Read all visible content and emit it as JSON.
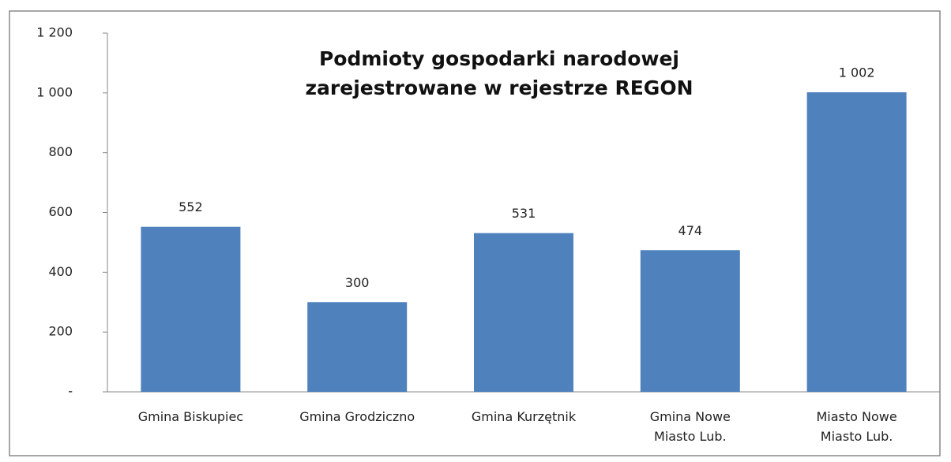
{
  "chart_data": {
    "type": "bar",
    "title": "Podmioty gospodarki narodowej\nzarejestrowane w rejestrze REGON",
    "categories": [
      "Gmina Biskupiec",
      "Gmina Grodziczno",
      "Gmina Kurzętnik",
      "Gmina Nowe\nMiasto Lub.",
      "Miasto Nowe\nMiasto Lub."
    ],
    "values": [
      552,
      300,
      531,
      474,
      1002
    ],
    "value_labels": [
      "552",
      "300",
      "531",
      "474",
      "1 002"
    ],
    "color": "#4f81bd",
    "ylim": [
      0,
      1200
    ],
    "yticks": [
      {
        "value": 0,
        "label": "-"
      },
      200,
      400,
      600,
      800,
      {
        "value": 1000,
        "label": "1 000"
      },
      {
        "value": 1200,
        "label": "1 200"
      }
    ],
    "grid": false
  }
}
